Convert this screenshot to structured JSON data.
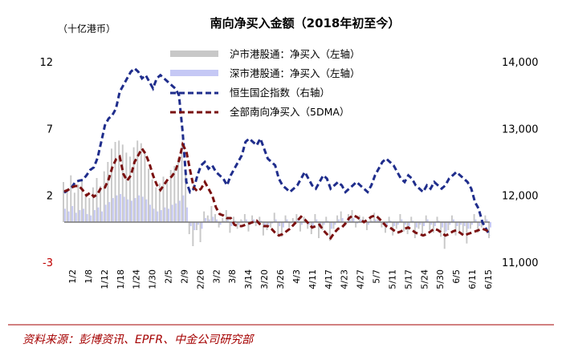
{
  "chart_data": {
    "type": "bar+line",
    "title": "南向净买入金额（2018年初至今）",
    "unit": "（十亿港币）",
    "source": "资料来源：彭博资讯、EPFR、中金公司研究部",
    "y_left": {
      "ticks": [
        -3,
        2,
        7,
        12
      ],
      "tick_colors": [
        "#c00000",
        "#000000",
        "#000000",
        "#000000"
      ],
      "range": [
        -3,
        12
      ]
    },
    "y_right": {
      "ticks": [
        "11,000",
        "12,000",
        "13,000",
        "14,000"
      ],
      "range": [
        11000,
        14000
      ]
    },
    "x_labels": [
      "1/2",
      "1/8",
      "1/12",
      "1/18",
      "1/24",
      "1/30",
      "2/5",
      "2/9",
      "2/26",
      "3/2",
      "3/8",
      "3/14",
      "3/20",
      "3/26",
      "4/3",
      "4/11",
      "4/17",
      "4/23",
      "4/27",
      "5/7",
      "5/11",
      "5/17",
      "5/24",
      "5/30",
      "6/5",
      "6/11",
      "6/15"
    ],
    "n_days": 116,
    "legend": [
      {
        "name": "沪市港股通：净买入（左轴）",
        "type": "bar",
        "color": "#c8c8c8"
      },
      {
        "name": "深市港股通：净买入（左轴）",
        "type": "bar",
        "color": "#c5c8f5"
      },
      {
        "name": "恒生国企指数（右轴）",
        "type": "dashed-line",
        "color": "#1f2d8c"
      },
      {
        "name": "全部南向净买入（5DMA）",
        "type": "dashed-line",
        "color": "#7a1010"
      }
    ],
    "hscei_right_axis": [
      12040,
      12080,
      12120,
      12200,
      12220,
      12230,
      12300,
      12380,
      12420,
      12560,
      12800,
      13050,
      13150,
      13200,
      13300,
      13550,
      13650,
      13750,
      13850,
      13900,
      13850,
      13750,
      13800,
      13700,
      13600,
      13750,
      13800,
      13750,
      13700,
      13650,
      13600,
      13500,
      12950,
      12200,
      12050,
      12100,
      12300,
      12450,
      12500,
      12400,
      12450,
      12350,
      12300,
      12250,
      12150,
      12300,
      12400,
      12500,
      12600,
      12800,
      12850,
      12800,
      12750,
      12850,
      12700,
      12550,
      12500,
      12450,
      12250,
      12150,
      12100,
      12050,
      12100,
      12150,
      12250,
      12350,
      12250,
      12150,
      12100,
      12200,
      12300,
      12250,
      12100,
      12150,
      12200,
      12150,
      12050,
      12100,
      12150,
      12200,
      12150,
      12100,
      12050,
      12150,
      12300,
      12400,
      12500,
      12550,
      12500,
      12450,
      12350,
      12250,
      12200,
      12300,
      12250,
      12150,
      12100,
      12050,
      12150,
      12100,
      12200,
      12150,
      12100,
      12150,
      12250,
      12300,
      12350,
      12300,
      12250,
      12200,
      12100,
      11900,
      11800,
      11600,
      11500,
      11400
    ],
    "southbound_5dma_left_axis": [
      2.3,
      2.4,
      2.6,
      2.7,
      2.7,
      2.4,
      2.0,
      2.2,
      1.9,
      2.1,
      2.6,
      2.6,
      3.2,
      4.1,
      4.7,
      4.9,
      3.6,
      3.1,
      3.5,
      4.5,
      5.0,
      5.5,
      5.1,
      4.4,
      3.5,
      2.8,
      2.4,
      2.8,
      3.2,
      3.4,
      3.8,
      4.6,
      5.8,
      5.3,
      3.9,
      2.6,
      2.3,
      2.5,
      3.0,
      2.5,
      2.0,
      1.1,
      0.6,
      0.5,
      0.3,
      0.3,
      -0.2,
      -0.3,
      -0.3,
      -0.2,
      -0.1,
      0.0,
      0.1,
      -0.2,
      -0.3,
      -0.3,
      -0.5,
      -0.8,
      -1.0,
      -0.9,
      -0.7,
      -0.5,
      -0.2,
      0.1,
      0.4,
      0.2,
      -0.1,
      -0.4,
      -0.3,
      -0.2,
      -0.6,
      -0.9,
      -1.2,
      -0.8,
      -0.5,
      -0.4,
      -0.1,
      0.3,
      0.5,
      0.4,
      0.2,
      0.0,
      0.2,
      0.4,
      0.5,
      0.3,
      0.0,
      -0.3,
      -0.4,
      -0.6,
      -0.8,
      -0.7,
      -0.5,
      -0.4,
      -0.6,
      -0.8,
      -0.9,
      -1.0,
      -0.9,
      -0.7,
      -0.5,
      -0.6,
      -0.8,
      -1.0,
      -0.9,
      -0.7,
      -0.6,
      -0.8,
      -1.0,
      -0.9,
      -0.8,
      -0.7,
      -0.6,
      -0.5,
      -0.6,
      -0.8
    ],
    "sh_bars_left_axis": [
      3.0,
      2.5,
      3.5,
      2.2,
      2.8,
      3.1,
      2.0,
      1.8,
      2.6,
      3.3,
      2.7,
      3.8,
      4.5,
      5.5,
      6.0,
      6.1,
      5.8,
      5.2,
      4.9,
      5.6,
      6.1,
      5.9,
      5.3,
      4.0,
      3.2,
      2.6,
      2.9,
      3.4,
      3.0,
      3.9,
      4.2,
      4.8,
      5.9,
      3.5,
      -0.9,
      -1.8,
      -0.6,
      -1.5,
      0.8,
      0.5,
      1.2,
      0.6,
      -0.4,
      0.3,
      0.9,
      -0.8,
      0.4,
      -0.5,
      0.2,
      0.6,
      -0.7,
      0.5,
      -0.3,
      0.4,
      -1.0,
      -0.6,
      -0.4,
      0.7,
      -0.9,
      -1.1,
      0.5,
      -0.4,
      0.3,
      0.6,
      -0.7,
      0.4,
      -0.5,
      -0.9,
      0.6,
      -1.2,
      -0.6,
      0.4,
      -1.4,
      -0.5,
      0.5,
      0.8,
      -0.3,
      0.6,
      0.9,
      -0.4,
      0.5,
      0.4,
      -0.6,
      0.3,
      0.7,
      0.5,
      -0.4,
      -0.8,
      0.4,
      -1.0,
      -0.5,
      0.6,
      -0.7,
      -0.9,
      0.4,
      -1.2,
      -0.5,
      -0.9,
      0.5,
      -0.6,
      -0.8,
      0.4,
      -1.1,
      -2.0,
      -0.6,
      0.5,
      -1.0,
      -0.7,
      -0.9,
      -1.6,
      -0.5,
      0.6,
      -0.8,
      -0.4,
      0.5,
      -1.2
    ],
    "sz_bars_left_axis": [
      1.0,
      0.8,
      1.2,
      0.7,
      0.9,
      1.0,
      0.6,
      0.5,
      0.9,
      1.1,
      0.8,
      1.3,
      1.5,
      1.8,
      2.0,
      2.1,
      1.9,
      1.7,
      1.6,
      1.8,
      2.0,
      1.9,
      1.7,
      1.3,
      1.0,
      0.8,
      0.9,
      1.1,
      1.0,
      1.3,
      1.4,
      1.6,
      2.0,
      1.1,
      -0.3,
      -0.6,
      -0.2,
      -0.5,
      0.3,
      0.2,
      0.4,
      0.2,
      -0.2,
      0.1,
      0.3,
      -0.3,
      0.1,
      -0.2,
      0.1,
      0.2,
      -0.2,
      0.2,
      -0.1,
      0.1,
      -0.3,
      -0.2,
      -0.1,
      0.2,
      -0.3,
      -0.4,
      0.2,
      -0.1,
      0.1,
      0.2,
      -0.2,
      0.1,
      -0.2,
      -0.3,
      0.2,
      -0.4,
      -0.2,
      0.1,
      -0.5,
      -0.2,
      0.2,
      0.3,
      -0.1,
      0.2,
      0.3,
      -0.1,
      0.2,
      0.1,
      -0.2,
      0.1,
      0.2,
      0.2,
      -0.1,
      -0.3,
      0.1,
      -0.3,
      -0.2,
      0.2,
      -0.2,
      -0.3,
      0.1,
      -0.4,
      -0.2,
      -0.3,
      0.2,
      -0.2,
      -0.3,
      0.1,
      -0.4,
      -0.7,
      -0.2,
      0.2,
      -0.3,
      -0.2,
      -0.3,
      -0.5,
      -0.2,
      0.2,
      -0.3,
      -0.1,
      0.2,
      -0.4
    ]
  }
}
